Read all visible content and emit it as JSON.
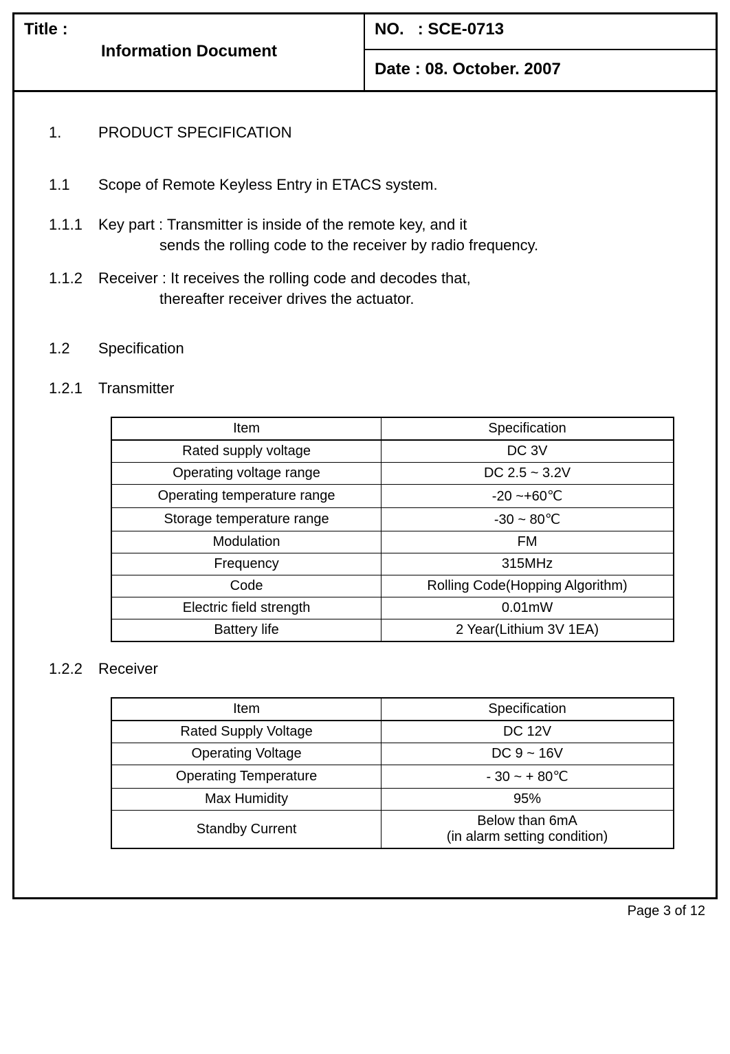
{
  "header": {
    "title_label": "Title :",
    "title_value": "Information Document",
    "no_label": "NO.",
    "no_value": ": SCE-0713",
    "date_label": "Date :",
    "date_value": "08. October. 2007"
  },
  "sections": {
    "s1_num": "1.",
    "s1_text": "PRODUCT SPECIFICATION",
    "s11_num": "1.1",
    "s11_text": "Scope of Remote Keyless Entry in ETACS system.",
    "s111_num": "1.1.1",
    "s111_line1": "Key part : Transmitter is inside of the remote key, and it",
    "s111_line2": "sends the rolling code to the receiver by radio frequency.",
    "s112_num": "1.1.2",
    "s112_line1": "Receiver : It receives the rolling code and decodes that,",
    "s112_line2": "thereafter receiver drives the actuator.",
    "s12_num": "1.2",
    "s12_text": "Specification",
    "s121_num": "1.2.1",
    "s121_text": "Transmitter",
    "s122_num": "1.2.2",
    "s122_text": "Receiver"
  },
  "transmitter_table": {
    "type": "table",
    "columns": [
      "Item",
      "Specification"
    ],
    "rows": [
      [
        "Rated supply voltage",
        "DC 3V"
      ],
      [
        "Operating voltage range",
        "DC 2.5 ~ 3.2V"
      ],
      [
        "Operating temperature range",
        "-20 ~+60℃"
      ],
      [
        "Storage temperature range",
        "-30 ~ 80℃"
      ],
      [
        "Modulation",
        "FM"
      ],
      [
        "Frequency",
        "315MHz"
      ],
      [
        "Code",
        "Rolling Code(Hopping Algorithm)"
      ],
      [
        "Electric field strength",
        "0.01mW"
      ],
      [
        "Battery life",
        "2 Year(Lithium 3V 1EA)"
      ]
    ],
    "border_color": "#000000",
    "background_color": "#ffffff",
    "fontsize": 20
  },
  "receiver_table": {
    "type": "table",
    "columns": [
      "Item",
      "Specification"
    ],
    "rows": [
      [
        "Rated  Supply Voltage",
        "DC 12V"
      ],
      [
        "Operating Voltage",
        "DC 9 ~ 16V"
      ],
      [
        "Operating Temperature",
        "- 30 ~ + 80℃"
      ],
      [
        "Max Humidity",
        "95%"
      ],
      [
        "Standby Current",
        "Below than 6mA\n(in alarm setting condition)"
      ]
    ],
    "border_color": "#000000",
    "background_color": "#ffffff",
    "fontsize": 20
  },
  "footer": {
    "page_text": "Page 3 of 12"
  }
}
